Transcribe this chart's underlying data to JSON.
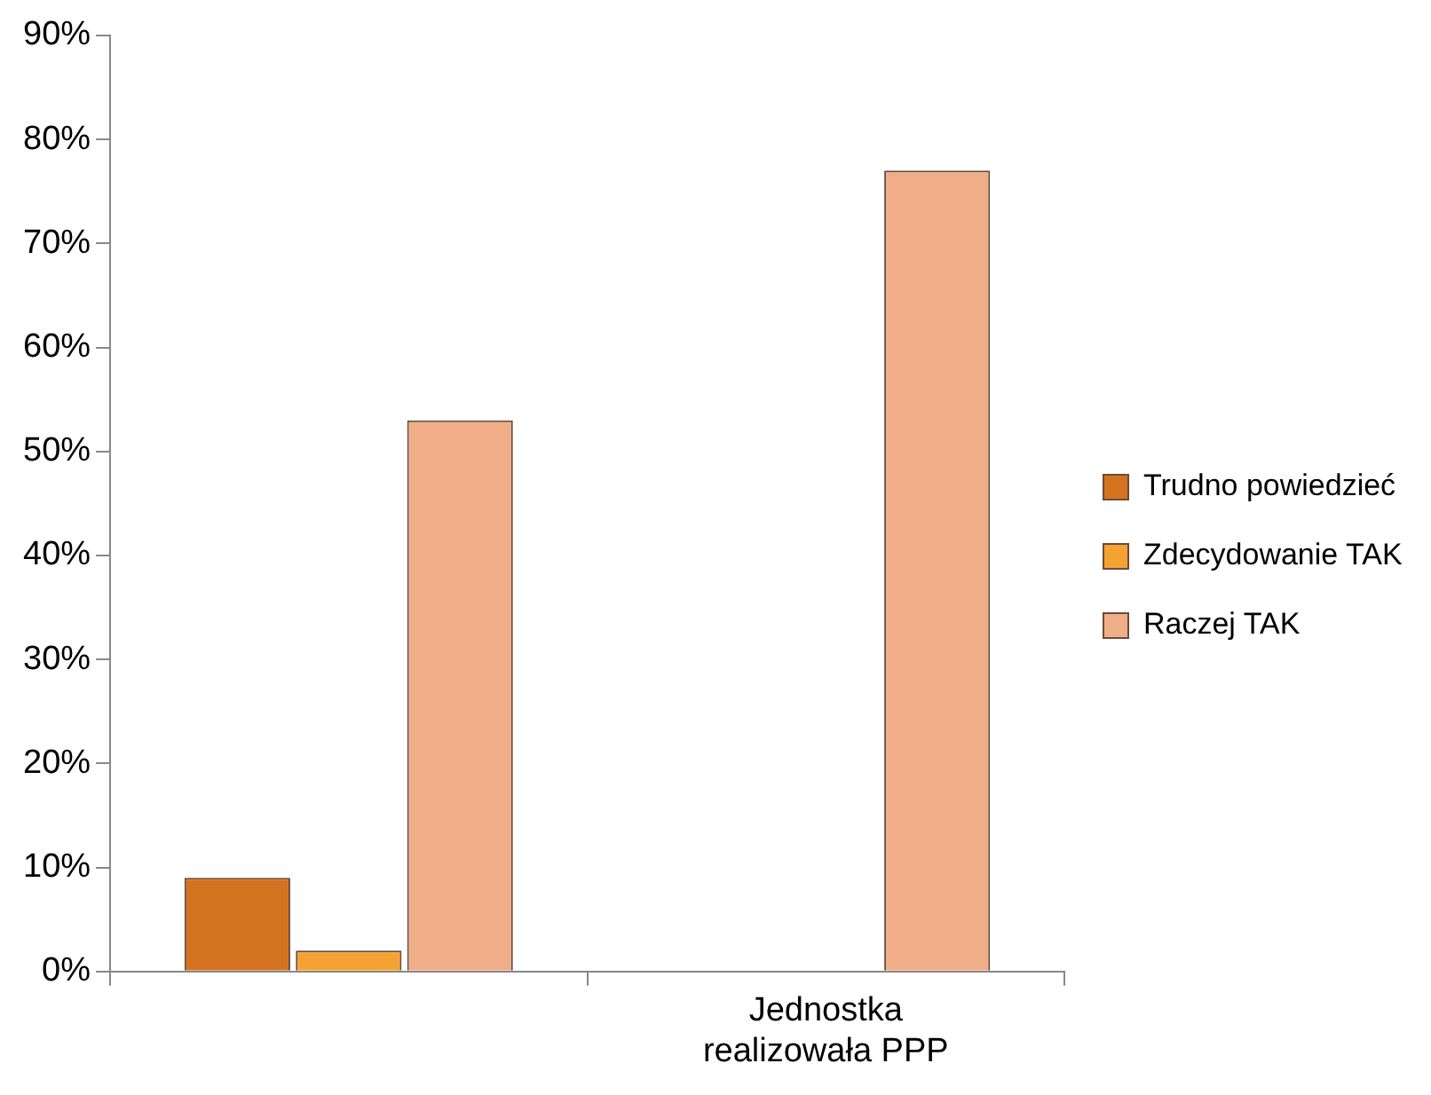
{
  "chart_data": {
    "type": "bar",
    "categories": [
      null,
      "Jednostka realizowała PPP"
    ],
    "series": [
      {
        "name": "Trudno powiedzieć",
        "color": "#d4731f",
        "values": [
          9,
          null
        ]
      },
      {
        "name": "Zdecydowanie TAK",
        "color": "#f4a234",
        "values": [
          2,
          null
        ]
      },
      {
        "name": "Raczej TAK",
        "color": "#efae88",
        "values": [
          53,
          77
        ]
      }
    ],
    "ylim": [
      0,
      90
    ],
    "yticks": [
      {
        "value": 0,
        "label": "0%"
      },
      {
        "value": 10,
        "label": "10%"
      },
      {
        "value": 20,
        "label": "20%"
      },
      {
        "value": 30,
        "label": "30%"
      },
      {
        "value": 40,
        "label": "40%"
      },
      {
        "value": 50,
        "label": "50%"
      },
      {
        "value": 60,
        "label": "60%"
      },
      {
        "value": 70,
        "label": "70%"
      },
      {
        "value": 80,
        "label": "80%"
      },
      {
        "value": 90,
        "label": "90%"
      }
    ],
    "grid": false,
    "legend": "right"
  }
}
